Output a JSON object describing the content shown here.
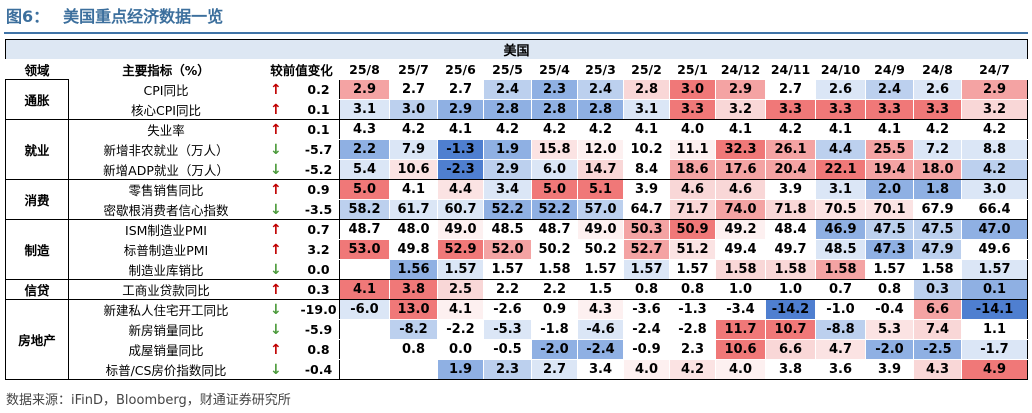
{
  "title": {
    "label": "图6：",
    "text": "美国重点经济数据一览"
  },
  "source": "数据来源：iFinD，Bloomberg，财通证券研究所",
  "table": {
    "region": "美国",
    "headers": {
      "domain": "领域",
      "indicator": "主要指标（%）",
      "change": "较前值变化"
    },
    "dates": [
      "25/8",
      "25/7",
      "25/6",
      "25/5",
      "25/4",
      "25/3",
      "25/2",
      "25/1",
      "24/12",
      "24/11",
      "24/10",
      "24/9",
      "24/8",
      "24/7"
    ],
    "groups": [
      {
        "domain": "通胀",
        "rows": [
          {
            "indicator": "CPI同比",
            "direction": "up",
            "change": "0.2",
            "values": [
              "2.9",
              "2.7",
              "2.7",
              "2.4",
              "2.3",
              "2.4",
              "2.8",
              "3.0",
              "2.9",
              "2.7",
              "2.6",
              "2.4",
              "2.6",
              "2.9"
            ],
            "colors": [
              "#f4a3a3",
              "#ffffff",
              "#ffffff",
              "#bcd0ee",
              "#8fb0e3",
              "#bcd0ee",
              "#f9d7d7",
              "#f07878",
              "#f4a3a3",
              "#ffffff",
              "#dbe6f6",
              "#bcd0ee",
              "#dbe6f6",
              "#f4a3a3"
            ]
          },
          {
            "indicator": "核心CPI同比",
            "direction": "up",
            "change": "0.1",
            "values": [
              "3.1",
              "3.0",
              "2.9",
              "2.8",
              "2.8",
              "2.8",
              "3.1",
              "3.3",
              "3.2",
              "3.3",
              "3.3",
              "3.3",
              "3.3",
              "3.2"
            ],
            "colors": [
              "#dbe6f6",
              "#bcd0ee",
              "#8fb0e3",
              "#8fb0e3",
              "#8fb0e3",
              "#8fb0e3",
              "#dbe6f6",
              "#f07878",
              "#f9d7d7",
              "#f07878",
              "#f07878",
              "#f07878",
              "#f07878",
              "#f9d7d7"
            ]
          }
        ]
      },
      {
        "domain": "就业",
        "rows": [
          {
            "indicator": "失业率",
            "direction": "up",
            "change": "0.1",
            "values": [
              "4.3",
              "4.2",
              "4.1",
              "4.2",
              "4.2",
              "4.2",
              "4.1",
              "4.0",
              "4.1",
              "4.2",
              "4.1",
              "4.1",
              "4.2",
              "4.2"
            ],
            "colors": [
              "#ffffff",
              "#ffffff",
              "#ffffff",
              "#ffffff",
              "#ffffff",
              "#ffffff",
              "#ffffff",
              "#ffffff",
              "#ffffff",
              "#ffffff",
              "#ffffff",
              "#ffffff",
              "#ffffff",
              "#ffffff"
            ]
          },
          {
            "indicator": "新增非农就业（万人）",
            "direction": "down",
            "change": "-5.7",
            "values": [
              "2.2",
              "7.9",
              "-1.3",
              "1.9",
              "15.8",
              "12.0",
              "10.2",
              "11.1",
              "32.3",
              "26.1",
              "4.4",
              "25.5",
              "7.2",
              "8.8"
            ],
            "colors": [
              "#8fb0e3",
              "#dbe6f6",
              "#4f7fd0",
              "#8fb0e3",
              "#fbe3e3",
              "#fdf0f0",
              "#ffffff",
              "#fdf0f0",
              "#f07878",
              "#f4a3a3",
              "#bcd0ee",
              "#f4a3a3",
              "#dbe6f6",
              "#dbe6f6"
            ]
          },
          {
            "indicator": "新增ADP就业（万人）",
            "direction": "down",
            "change": "-5.2",
            "values": [
              "5.4",
              "10.6",
              "-2.3",
              "2.9",
              "6.0",
              "14.7",
              "8.4",
              "18.6",
              "17.6",
              "20.4",
              "22.1",
              "19.4",
              "18.0",
              "4.2"
            ],
            "colors": [
              "#dbe6f6",
              "#fbe3e3",
              "#4f7fd0",
              "#bcd0ee",
              "#dbe6f6",
              "#f9d7d7",
              "#ffffff",
              "#f4a3a3",
              "#f4a3a3",
              "#f4a3a3",
              "#f07878",
              "#f4a3a3",
              "#f4a3a3",
              "#bcd0ee"
            ]
          }
        ]
      },
      {
        "domain": "消费",
        "rows": [
          {
            "indicator": "零售销售同比",
            "direction": "up",
            "change": "0.9",
            "values": [
              "5.0",
              "4.1",
              "4.4",
              "3.4",
              "5.0",
              "5.1",
              "3.9",
              "4.6",
              "4.6",
              "3.9",
              "3.1",
              "2.0",
              "1.8",
              "3.0"
            ],
            "colors": [
              "#f07878",
              "#ffffff",
              "#fbe3e3",
              "#dbe6f6",
              "#f07878",
              "#f07878",
              "#ffffff",
              "#f9d7d7",
              "#f9d7d7",
              "#ffffff",
              "#dbe6f6",
              "#8fb0e3",
              "#8fb0e3",
              "#dbe6f6"
            ]
          },
          {
            "indicator": "密歇根消费者信心指数",
            "direction": "down",
            "change": "-3.5",
            "values": [
              "58.2",
              "61.7",
              "60.7",
              "52.2",
              "52.2",
              "57.0",
              "64.7",
              "71.7",
              "74.0",
              "71.8",
              "70.5",
              "70.1",
              "67.9",
              "66.4"
            ],
            "colors": [
              "#bcd0ee",
              "#dbe6f6",
              "#dbe6f6",
              "#8fb0e3",
              "#8fb0e3",
              "#bcd0ee",
              "#ffffff",
              "#f9d7d7",
              "#f4a3a3",
              "#f9d7d7",
              "#fbe3e3",
              "#fbe3e3",
              "#ffffff",
              "#ffffff"
            ]
          }
        ]
      },
      {
        "domain": "制造",
        "rows": [
          {
            "indicator": "ISM制造业PMI",
            "direction": "up",
            "change": "0.7",
            "values": [
              "48.7",
              "48.0",
              "49.0",
              "48.5",
              "48.7",
              "49.0",
              "50.3",
              "50.9",
              "49.2",
              "48.4",
              "46.9",
              "47.5",
              "47.5",
              "47.0"
            ],
            "colors": [
              "#ffffff",
              "#ffffff",
              "#fdf0f0",
              "#ffffff",
              "#ffffff",
              "#fdf0f0",
              "#f4a3a3",
              "#f07878",
              "#fdf0f0",
              "#ffffff",
              "#8fb0e3",
              "#bcd0ee",
              "#bcd0ee",
              "#8fb0e3"
            ]
          },
          {
            "indicator": "标普制造业PMI",
            "direction": "up",
            "change": "3.2",
            "values": [
              "53.0",
              "49.8",
              "52.9",
              "52.0",
              "50.2",
              "50.2",
              "52.7",
              "51.2",
              "49.4",
              "49.7",
              "48.5",
              "47.3",
              "47.9",
              "49.6"
            ],
            "colors": [
              "#f07878",
              "#ffffff",
              "#f07878",
              "#f4a3a3",
              "#ffffff",
              "#ffffff",
              "#f4a3a3",
              "#fbe3e3",
              "#ffffff",
              "#ffffff",
              "#dbe6f6",
              "#8fb0e3",
              "#bcd0ee",
              "#ffffff"
            ]
          },
          {
            "indicator": "制造业库销比",
            "direction": "down",
            "change": "0.0",
            "values": [
              "",
              "1.56",
              "1.57",
              "1.57",
              "1.58",
              "1.57",
              "1.57",
              "1.57",
              "1.58",
              "1.58",
              "1.58",
              "1.57",
              "1.58",
              "1.57"
            ],
            "colors": [
              "#ffffff",
              "#8fb0e3",
              "#dbe6f6",
              "#ffffff",
              "#ffffff",
              "#ffffff",
              "#dbe6f6",
              "#ffffff",
              "#f9d7d7",
              "#f9d7d7",
              "#f4a3a3",
              "#ffffff",
              "#ffffff",
              "#dbe6f6"
            ]
          }
        ]
      },
      {
        "domain": "信贷",
        "rows": [
          {
            "indicator": "工商业贷款同比",
            "direction": "up",
            "change": "0.3",
            "values": [
              "4.1",
              "3.8",
              "2.5",
              "2.2",
              "2.2",
              "1.5",
              "0.8",
              "0.8",
              "1.0",
              "1.0",
              "0.7",
              "0.8",
              "0.3",
              "0.1"
            ],
            "colors": [
              "#f07878",
              "#f07878",
              "#f9d7d7",
              "#ffffff",
              "#ffffff",
              "#ffffff",
              "#ffffff",
              "#ffffff",
              "#ffffff",
              "#ffffff",
              "#ffffff",
              "#ffffff",
              "#bcd0ee",
              "#8fb0e3"
            ]
          }
        ]
      },
      {
        "domain": "房地产",
        "rows": [
          {
            "indicator": "新建私人住宅开工同比",
            "direction": "down",
            "change": "-19.0",
            "values": [
              "-6.0",
              "13.0",
              "4.1",
              "-2.6",
              "0.9",
              "4.3",
              "-3.6",
              "-1.3",
              "-3.4",
              "-14.2",
              "-1.0",
              "-0.4",
              "6.6",
              "-14.1"
            ],
            "colors": [
              "#dbe6f6",
              "#f07878",
              "#fdf0f0",
              "#ffffff",
              "#ffffff",
              "#fdf0f0",
              "#ffffff",
              "#ffffff",
              "#ffffff",
              "#4f7fd0",
              "#ffffff",
              "#ffffff",
              "#f4a3a3",
              "#4f7fd0"
            ]
          },
          {
            "indicator": "新房销量同比",
            "direction": "down",
            "change": "-5.9",
            "values": [
              "",
              "-8.2",
              "-2.2",
              "-5.3",
              "-1.8",
              "-4.6",
              "-2.4",
              "-2.8",
              "11.7",
              "10.7",
              "-8.8",
              "5.3",
              "7.4",
              "1.1"
            ],
            "colors": [
              "#ffffff",
              "#bcd0ee",
              "#ffffff",
              "#dbe6f6",
              "#ffffff",
              "#dbe6f6",
              "#ffffff",
              "#ffffff",
              "#f07878",
              "#f07878",
              "#bcd0ee",
              "#fbe3e3",
              "#f9d7d7",
              "#ffffff"
            ]
          },
          {
            "indicator": "成屋销量同比",
            "direction": "up",
            "change": "0.8",
            "values": [
              "",
              "0.8",
              "0.0",
              "-0.5",
              "-2.0",
              "-2.4",
              "-0.9",
              "2.3",
              "10.6",
              "6.6",
              "4.7",
              "-2.0",
              "-2.5",
              "-1.7"
            ],
            "colors": [
              "#ffffff",
              "#ffffff",
              "#ffffff",
              "#ffffff",
              "#8fb0e3",
              "#8fb0e3",
              "#ffffff",
              "#ffffff",
              "#f07878",
              "#f9d7d7",
              "#fbe3e3",
              "#8fb0e3",
              "#8fb0e3",
              "#dbe6f6"
            ]
          },
          {
            "indicator": "标普/CS房价指数同比",
            "direction": "down",
            "change": "-0.4",
            "values": [
              "",
              "",
              "1.9",
              "2.3",
              "2.7",
              "3.4",
              "4.0",
              "4.2",
              "4.0",
              "3.8",
              "3.6",
              "3.9",
              "4.3",
              "4.9"
            ],
            "colors": [
              "#ffffff",
              "#ffffff",
              "#8fb0e3",
              "#bcd0ee",
              "#dbe6f6",
              "#ffffff",
              "#fdf0f0",
              "#fbe3e3",
              "#fdf0f0",
              "#ffffff",
              "#ffffff",
              "#ffffff",
              "#f9d7d7",
              "#f07878"
            ]
          }
        ]
      }
    ]
  }
}
